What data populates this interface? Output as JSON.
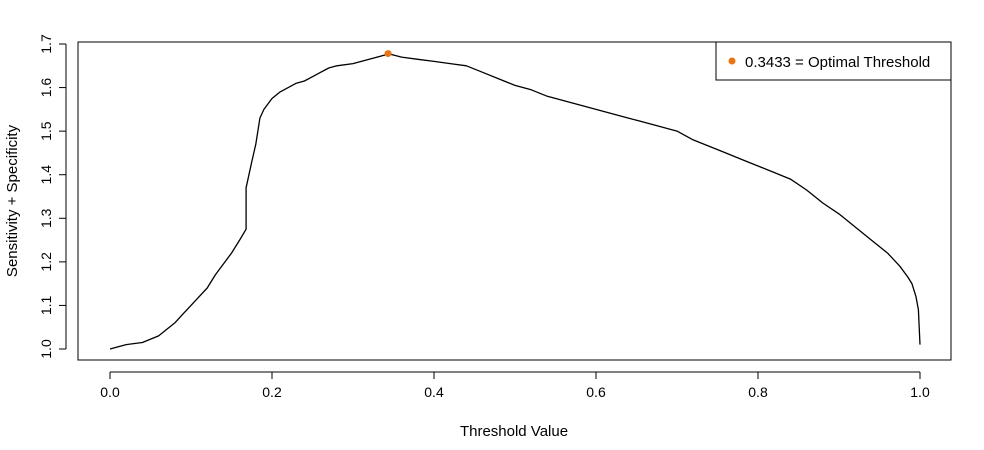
{
  "chart_data": {
    "type": "line",
    "title": "",
    "xlabel": "Threshold Value",
    "ylabel": "Sensitivity + Specificity",
    "xlim": [
      0.0,
      1.0
    ],
    "ylim": [
      1.0,
      1.7
    ],
    "x_ticks": [
      0.0,
      0.2,
      0.4,
      0.6,
      0.8,
      1.0
    ],
    "x_tick_labels": [
      "0.0",
      "0.2",
      "0.4",
      "0.6",
      "0.8",
      "1.0"
    ],
    "y_ticks": [
      1.0,
      1.1,
      1.2,
      1.3,
      1.4,
      1.5,
      1.6,
      1.7
    ],
    "y_tick_labels": [
      "1.0",
      "1.1",
      "1.2",
      "1.3",
      "1.4",
      "1.5",
      "1.6",
      "1.7"
    ],
    "grid": false,
    "legend_position": "top-right",
    "legend": {
      "label": "0.3433  =  Optimal Threshold",
      "color": "#E87511"
    },
    "series": [
      {
        "color": "#000000",
        "points": [
          [
            0.0,
            1.0
          ],
          [
            0.02,
            1.01
          ],
          [
            0.04,
            1.015
          ],
          [
            0.06,
            1.03
          ],
          [
            0.07,
            1.045
          ],
          [
            0.08,
            1.06
          ],
          [
            0.09,
            1.08
          ],
          [
            0.1,
            1.1
          ],
          [
            0.11,
            1.12
          ],
          [
            0.12,
            1.14
          ],
          [
            0.13,
            1.17
          ],
          [
            0.14,
            1.195
          ],
          [
            0.15,
            1.22
          ],
          [
            0.16,
            1.25
          ],
          [
            0.168,
            1.275
          ],
          [
            0.168,
            1.37
          ],
          [
            0.175,
            1.43
          ],
          [
            0.18,
            1.47
          ],
          [
            0.185,
            1.53
          ],
          [
            0.19,
            1.55
          ],
          [
            0.2,
            1.575
          ],
          [
            0.21,
            1.59
          ],
          [
            0.22,
            1.6
          ],
          [
            0.23,
            1.61
          ],
          [
            0.24,
            1.615
          ],
          [
            0.25,
            1.625
          ],
          [
            0.26,
            1.635
          ],
          [
            0.27,
            1.645
          ],
          [
            0.28,
            1.65
          ],
          [
            0.3,
            1.655
          ],
          [
            0.32,
            1.665
          ],
          [
            0.34,
            1.675
          ],
          [
            0.3433,
            1.678
          ],
          [
            0.36,
            1.67
          ],
          [
            0.38,
            1.665
          ],
          [
            0.4,
            1.66
          ],
          [
            0.42,
            1.655
          ],
          [
            0.44,
            1.65
          ],
          [
            0.46,
            1.635
          ],
          [
            0.48,
            1.62
          ],
          [
            0.5,
            1.605
          ],
          [
            0.52,
            1.595
          ],
          [
            0.54,
            1.58
          ],
          [
            0.56,
            1.57
          ],
          [
            0.58,
            1.56
          ],
          [
            0.6,
            1.55
          ],
          [
            0.62,
            1.54
          ],
          [
            0.64,
            1.53
          ],
          [
            0.66,
            1.52
          ],
          [
            0.68,
            1.51
          ],
          [
            0.7,
            1.5
          ],
          [
            0.72,
            1.48
          ],
          [
            0.74,
            1.465
          ],
          [
            0.76,
            1.45
          ],
          [
            0.78,
            1.435
          ],
          [
            0.8,
            1.42
          ],
          [
            0.82,
            1.405
          ],
          [
            0.84,
            1.39
          ],
          [
            0.86,
            1.365
          ],
          [
            0.88,
            1.335
          ],
          [
            0.9,
            1.31
          ],
          [
            0.92,
            1.28
          ],
          [
            0.94,
            1.25
          ],
          [
            0.96,
            1.22
          ],
          [
            0.975,
            1.19
          ],
          [
            0.985,
            1.165
          ],
          [
            0.99,
            1.15
          ],
          [
            0.995,
            1.12
          ],
          [
            0.998,
            1.09
          ],
          [
            1.0,
            1.01
          ]
        ]
      }
    ],
    "optimal_point": {
      "x": 0.3433,
      "y": 1.678,
      "color": "#E87511"
    }
  }
}
